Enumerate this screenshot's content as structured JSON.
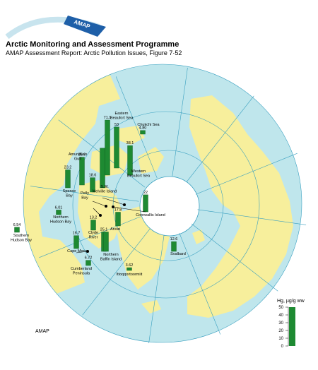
{
  "header": {
    "logo_text": "AMAP",
    "title": "Arctic Monitoring and Assessment Programme",
    "subtitle": "AMAP Assessment Report: Arctic Pollution Issues, Figure 7·52"
  },
  "footer": {
    "credit": "AMAP"
  },
  "colors": {
    "land": "#f7ef9c",
    "ocean": "#bfe6ec",
    "ice": "#ffffff",
    "bar": "#1e8a32",
    "lines": "#3aa0c0"
  },
  "legend": {
    "title": "Hg, µg/g ww",
    "ticks": [
      "0",
      "10",
      "20",
      "30",
      "40",
      "50"
    ],
    "max_value": 50
  },
  "bar_scale": {
    "max_value": 71.1
  },
  "sites": [
    {
      "label": "Eastern\nBeaufort Sea",
      "value": 53,
      "value_text": "53"
    },
    {
      "label": "Chukchi Sea",
      "value": 4.8,
      "value_text": "4.80"
    },
    {
      "label": "Amundsen\nGulf",
      "value": 35.9,
      "value_text": "35.9"
    },
    {
      "label": "",
      "value": 71.1,
      "value_text": "71.1"
    },
    {
      "label": "Western\nBeaufort Sea",
      "value": 38.1,
      "value_text": "38.1"
    },
    {
      "label": "Spence\nBay",
      "value": 23.2,
      "value_text": "23.2"
    },
    {
      "label": "Pelly\nBay",
      "value": 18.6,
      "value_text": "18.6"
    },
    {
      "label": "S.W.\nMelville Island",
      "value": 51.2,
      "value_text": ""
    },
    {
      "label": "Cornwallis Island",
      "value": 22,
      "value_text": "22"
    },
    {
      "label": "Northern\nHudson Bay",
      "value": 6.01,
      "value_text": "6.01"
    },
    {
      "label": "Southern\nHudson Bay",
      "value": 6.54,
      "value_text": "6.54"
    },
    {
      "label": "Arviat",
      "value": 17.8,
      "value_text": "17.8"
    },
    {
      "label": "Clyde\nRiver",
      "value": 13.2,
      "value_text": "13.2"
    },
    {
      "label": "",
      "value": 25.1,
      "value_text": "25.1"
    },
    {
      "label": "Cape Mercy",
      "value": 16.7,
      "value_text": "16.7"
    },
    {
      "label": "Northern\nBaffin Island",
      "value": 25.1,
      "value_text": ""
    },
    {
      "label": "Cumberland\nPeninsula",
      "value": 6.72,
      "value_text": "6.72"
    },
    {
      "label": "Ittoqqortoormiit",
      "value": 3.62,
      "value_text": "3.62"
    },
    {
      "label": "Svalbard",
      "value": 12.6,
      "value_text": "12.6"
    }
  ]
}
